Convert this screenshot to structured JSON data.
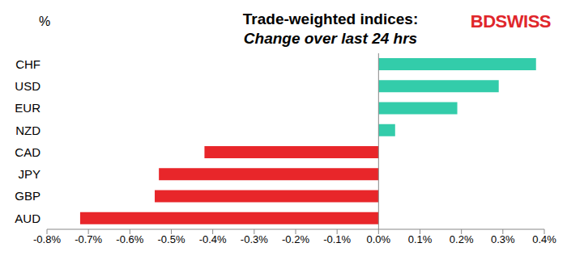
{
  "chart_data": {
    "type": "bar",
    "orientation": "horizontal",
    "title": "Trade-weighted indices:",
    "subtitle": "Change over last 24 hrs",
    "value_axis_label": "%",
    "annotations": [
      "BDSWISS"
    ],
    "categories": [
      "CHF",
      "USD",
      "EUR",
      "NZD",
      "CAD",
      "JPY",
      "GBP",
      "AUD"
    ],
    "values": [
      0.38,
      0.29,
      0.19,
      0.04,
      -0.42,
      -0.53,
      -0.54,
      -0.72
    ],
    "colors": [
      "#33CCAA",
      "#33CCAA",
      "#33CCAA",
      "#33CCAA",
      "#E8262A",
      "#E8262A",
      "#E8262A",
      "#E8262A"
    ],
    "xlim": [
      -0.8,
      0.4
    ],
    "xticks": [
      {
        "value": -0.8,
        "label": "-0.8%"
      },
      {
        "value": -0.7,
        "label": "-0.7%"
      },
      {
        "value": -0.6,
        "label": "-0.6%"
      },
      {
        "value": -0.5,
        "label": "-0.5%"
      },
      {
        "value": -0.4,
        "label": "-0.4%"
      },
      {
        "value": -0.3,
        "label": "-0.3%"
      },
      {
        "value": -0.2,
        "label": "-0.2%"
      },
      {
        "value": -0.1,
        "label": "-0.1%"
      },
      {
        "value": 0,
        "label": "0.0%"
      },
      {
        "value": 0.1,
        "label": "0.1%"
      },
      {
        "value": 0.2,
        "label": "0.2%"
      },
      {
        "value": 0.3,
        "label": "0.3%"
      },
      {
        "value": 0.4,
        "label": "0.4%"
      }
    ],
    "grid": false
  }
}
